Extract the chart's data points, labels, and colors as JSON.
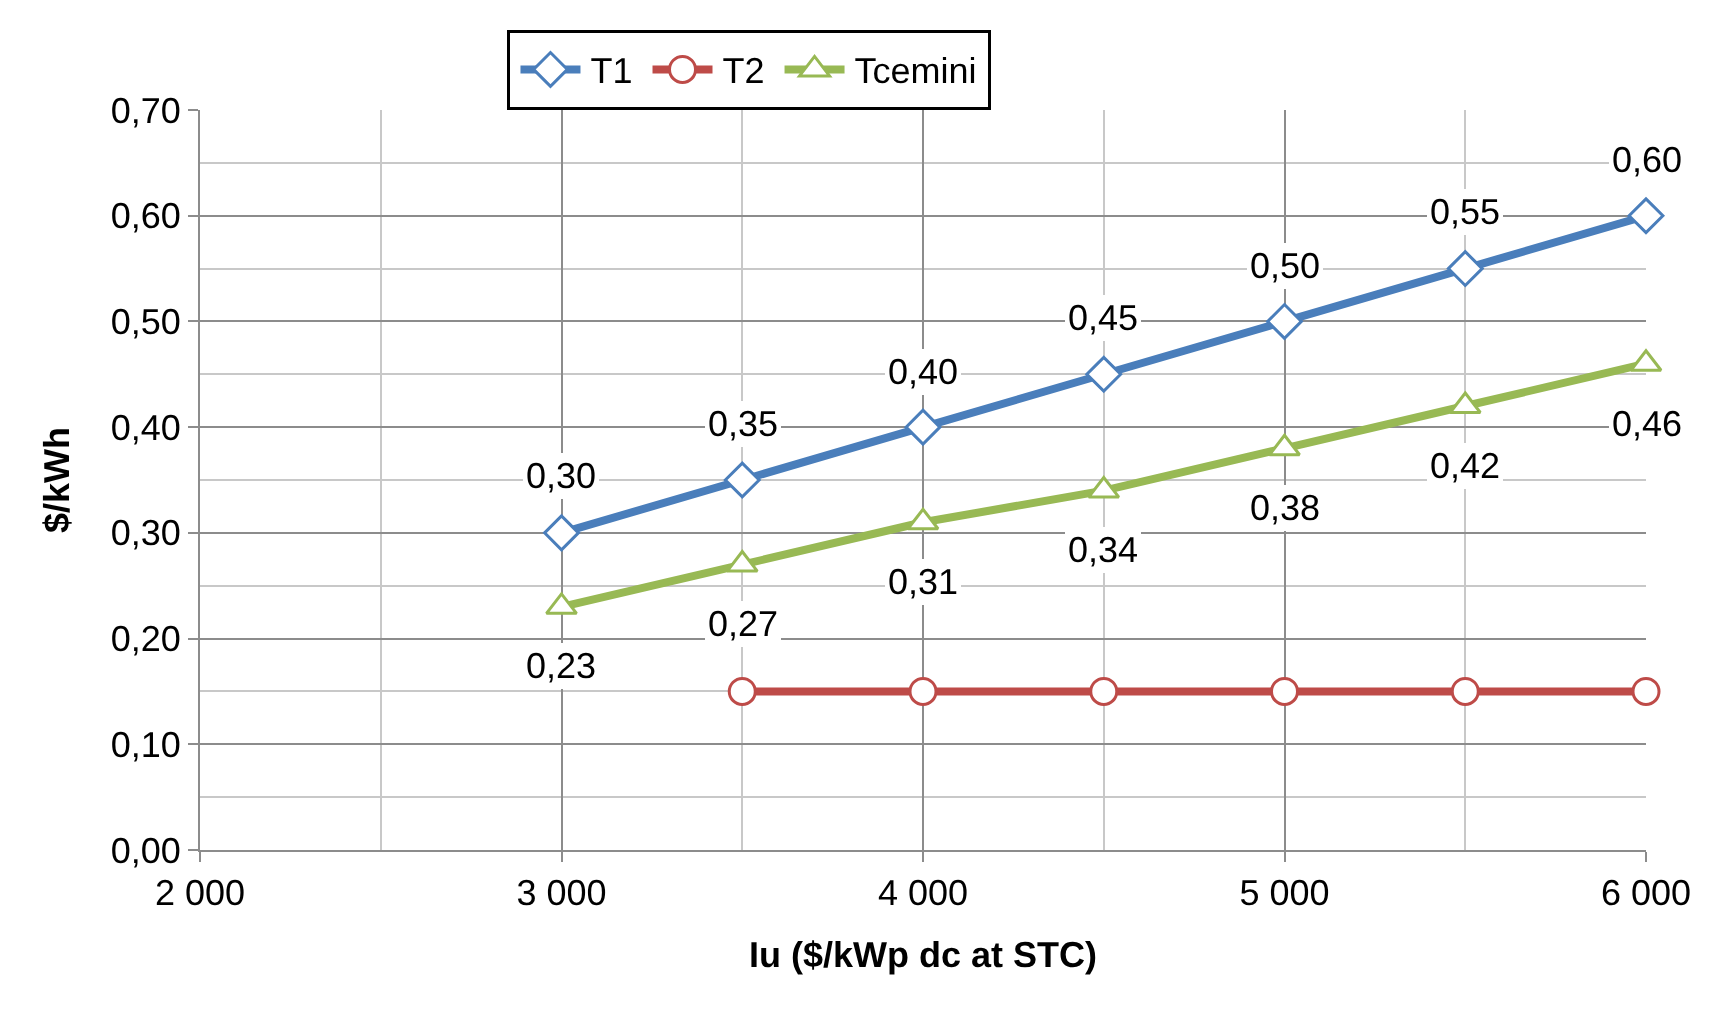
{
  "chart_data": {
    "type": "line",
    "xlabel": "Iu ($/kWp dc at STC)",
    "ylabel": "$/kWh",
    "x": [
      3000,
      3500,
      4000,
      4500,
      5000,
      5500,
      6000
    ],
    "xlim": [
      2000,
      6000
    ],
    "xticks": [
      {
        "value": 2000,
        "label": "2 000"
      },
      {
        "value": 3000,
        "label": "3 000"
      },
      {
        "value": 4000,
        "label": "4 000"
      },
      {
        "value": 5000,
        "label": "5 000"
      },
      {
        "value": 6000,
        "label": "6 000"
      }
    ],
    "ylim": [
      0,
      0.7
    ],
    "yticks": [
      {
        "value": 0,
        "label": "0,00"
      },
      {
        "value": 0.1,
        "label": "0,10"
      },
      {
        "value": 0.2,
        "label": "0,20"
      },
      {
        "value": 0.3,
        "label": "0,30"
      },
      {
        "value": 0.4,
        "label": "0,40"
      },
      {
        "value": 0.5,
        "label": "0,50"
      },
      {
        "value": 0.6,
        "label": "0,60"
      },
      {
        "value": 0.7,
        "label": "0,70"
      }
    ],
    "grid": true,
    "legend": "top",
    "series": [
      {
        "name": "T1",
        "color": "#4a7ebb",
        "marker": "diamond",
        "values": [
          0.3,
          0.35,
          0.4,
          0.45,
          0.5,
          0.55,
          0.6
        ],
        "value_labels": [
          "0,30",
          "0,35",
          "0,40",
          "0,45",
          "0,50",
          "0,55",
          "0,60"
        ]
      },
      {
        "name": "T2",
        "color": "#be4b48",
        "marker": "circle",
        "values": [
          null,
          0.15,
          0.15,
          0.15,
          0.15,
          0.15,
          0.15
        ]
      },
      {
        "name": "Tcemini",
        "color": "#98b954",
        "marker": "triangle",
        "values": [
          0.23,
          0.27,
          0.31,
          0.34,
          0.38,
          0.42,
          0.46
        ],
        "value_labels": [
          "0,23",
          "0,27",
          "0,31",
          "0,34",
          "0,38",
          "0,42",
          "0,46"
        ]
      }
    ]
  }
}
